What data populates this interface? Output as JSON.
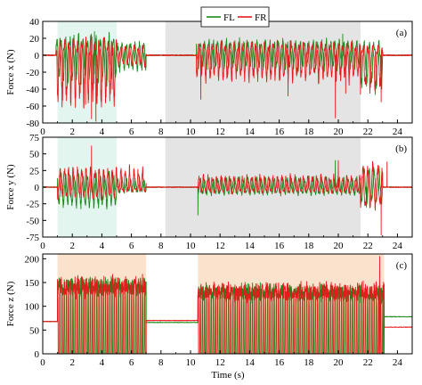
{
  "chart_data": {
    "type": "line",
    "xlabel": "Time (s)",
    "xlim": [
      0,
      25
    ],
    "x_ticks": [
      0,
      2,
      4,
      6,
      8,
      10,
      12,
      14,
      16,
      18,
      20,
      22,
      24
    ],
    "series_names": [
      "FL",
      "FR"
    ],
    "colors": {
      "FL": "#1a8a1a",
      "FR": "#e8191c"
    },
    "legend": {
      "position": "top-center",
      "entries": [
        "FL",
        "FR"
      ]
    },
    "panels": [
      {
        "tag": "(a)",
        "ylabel": "Force x (N)",
        "ylim": [
          -80,
          40
        ],
        "y_ticks": [
          40,
          20,
          0,
          -20,
          -40,
          -60,
          -80
        ],
        "grid": false,
        "shaded_regions": [
          {
            "x0": 1.0,
            "x1": 5.0,
            "color": "#e3f5ef"
          },
          {
            "x0": 8.3,
            "x1": 21.5,
            "color": "#e4e4e4"
          }
        ],
        "segments": [
          {
            "x0": 0.0,
            "x1": 0.9,
            "kind": "flat",
            "fl": 0,
            "fr": 0
          },
          {
            "x0": 0.9,
            "x1": 5.0,
            "kind": "osc",
            "fl_max": 28,
            "fl_min": -40,
            "fr_max": 22,
            "fr_min": -75,
            "freq": 3.4
          },
          {
            "x0": 5.0,
            "x1": 7.0,
            "kind": "osc",
            "fl_max": 20,
            "fl_min": -22,
            "fr_max": 14,
            "fr_min": -16,
            "freq": 3.4
          },
          {
            "x0": 7.0,
            "x1": 10.4,
            "kind": "flat",
            "fl": 0,
            "fr": 0
          },
          {
            "x0": 10.4,
            "x1": 21.5,
            "kind": "osc",
            "fl_max": 22,
            "fl_min": -20,
            "fr_max": 18,
            "fr_min": -38,
            "freq": 3.4
          },
          {
            "x0": 21.5,
            "x1": 23.0,
            "kind": "osc",
            "fl_max": 18,
            "fl_min": -50,
            "fr_max": 12,
            "fr_min": -55,
            "freq": 3.0
          },
          {
            "x0": 23.0,
            "x1": 25.0,
            "kind": "flat",
            "fl": 0,
            "fr": 0
          }
        ],
        "fl_peaks": [
          {
            "x": 3.5,
            "y": 28
          },
          {
            "x": 20.3,
            "y": 25
          },
          {
            "x": 22.9,
            "y": -35
          }
        ],
        "fr_peaks": [
          {
            "x": 2.9,
            "y": -58
          },
          {
            "x": 3.3,
            "y": -75
          },
          {
            "x": 3.6,
            "y": -78
          },
          {
            "x": 4.7,
            "y": -40
          },
          {
            "x": 10.7,
            "y": -52
          },
          {
            "x": 16.6,
            "y": -48
          },
          {
            "x": 19.8,
            "y": -74
          },
          {
            "x": 20.5,
            "y": -45
          },
          {
            "x": 22.9,
            "y": -55
          }
        ]
      },
      {
        "tag": "(b)",
        "ylabel": "Force y (N)",
        "ylim": [
          -75,
          75
        ],
        "y_ticks": [
          75,
          50,
          25,
          0,
          -25,
          -50,
          -75
        ],
        "grid": false,
        "shaded_regions": [
          {
            "x0": 1.0,
            "x1": 5.0,
            "color": "#e3f5ef"
          },
          {
            "x0": 8.3,
            "x1": 21.5,
            "color": "#e4e4e4"
          }
        ],
        "segments": [
          {
            "x0": 0.0,
            "x1": 1.0,
            "kind": "flat",
            "fl": 0,
            "fr": 0
          },
          {
            "x0": 1.0,
            "x1": 5.0,
            "kind": "osc",
            "fl_max": 25,
            "fl_min": -38,
            "fr_max": 38,
            "fr_min": -20,
            "freq": 3.4
          },
          {
            "x0": 5.0,
            "x1": 7.0,
            "kind": "osc",
            "fl_max": 18,
            "fl_min": -10,
            "fr_max": 38,
            "fr_min": -8,
            "freq": 3.4
          },
          {
            "x0": 7.0,
            "x1": 10.5,
            "kind": "flat",
            "fl": 0,
            "fr": 0
          },
          {
            "x0": 10.5,
            "x1": 21.5,
            "kind": "osc",
            "fl_max": 18,
            "fl_min": -14,
            "fr_max": 22,
            "fr_min": -10,
            "freq": 3.4
          },
          {
            "x0": 21.5,
            "x1": 23.0,
            "kind": "osc",
            "fl_max": 40,
            "fl_min": -30,
            "fr_max": 45,
            "fr_min": -40,
            "freq": 3.0
          },
          {
            "x0": 23.0,
            "x1": 25.0,
            "kind": "flat",
            "fl": 0,
            "fr": 0
          }
        ],
        "fl_peaks": [
          {
            "x": 10.5,
            "y": -42
          },
          {
            "x": 19.8,
            "y": 40
          },
          {
            "x": 21.9,
            "y": -30
          }
        ],
        "fr_peaks": [
          {
            "x": 3.3,
            "y": 62
          },
          {
            "x": 20.0,
            "y": 40
          },
          {
            "x": 22.9,
            "y": -72
          },
          {
            "x": 23.3,
            "y": 38
          }
        ]
      },
      {
        "tag": "(c)",
        "ylabel": "Force z (N)",
        "ylim": [
          0,
          210
        ],
        "y_ticks": [
          200,
          150,
          100,
          50,
          0
        ],
        "grid": false,
        "shaded_regions": [
          {
            "x0": 1.0,
            "x1": 7.0,
            "color": "#fbe2cc"
          },
          {
            "x0": 10.5,
            "x1": 23.1,
            "color": "#fbe2cc"
          }
        ],
        "segments": [
          {
            "x0": 0.0,
            "x1": 1.0,
            "kind": "flat",
            "fl": 68,
            "fr": 68
          },
          {
            "x0": 1.0,
            "x1": 7.0,
            "kind": "stance",
            "fl_max": 170,
            "fl_min": 0,
            "fr_max": 175,
            "fr_min": 0,
            "freq": 3.4
          },
          {
            "x0": 7.0,
            "x1": 10.5,
            "kind": "flat",
            "fl": 66,
            "fr": 70
          },
          {
            "x0": 10.5,
            "x1": 23.1,
            "kind": "stance",
            "fl_max": 155,
            "fl_min": 0,
            "fr_max": 160,
            "fr_min": 0,
            "freq": 3.4
          },
          {
            "x0": 23.1,
            "x1": 25.0,
            "kind": "flat",
            "fl": 78,
            "fr": 56
          }
        ],
        "fl_peaks": [],
        "fr_peaks": [
          {
            "x": 22.8,
            "y": 205
          }
        ]
      }
    ]
  }
}
